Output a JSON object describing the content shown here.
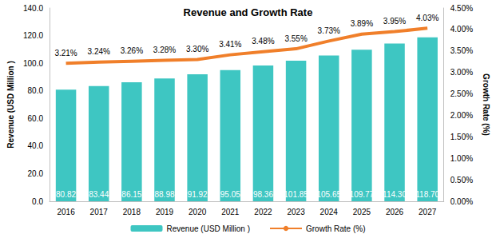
{
  "chart_data": {
    "type": "bar",
    "title": "Revenue and Growth Rate",
    "categories": [
      "2016",
      "2017",
      "2018",
      "2019",
      "2020",
      "2021",
      "2022",
      "2023",
      "2024",
      "2025",
      "2026",
      "2027"
    ],
    "y_label": "Revenue (USD Million )",
    "y2_label": "Growth Rate (%)",
    "ylim": [
      0,
      140
    ],
    "yticks": [
      {
        "value": 0,
        "label": "0.0"
      },
      {
        "value": 20,
        "label": "20.0"
      },
      {
        "value": 40,
        "label": "40.0"
      },
      {
        "value": 60,
        "label": "60.0"
      },
      {
        "value": 80,
        "label": "80.0"
      },
      {
        "value": 100,
        "label": "100.0"
      },
      {
        "value": 120,
        "label": "120.0"
      },
      {
        "value": 140,
        "label": "140.0"
      }
    ],
    "y2lim": [
      0,
      4.5
    ],
    "y2ticks": [
      {
        "value": 0,
        "label": "0.00%"
      },
      {
        "value": 0.5,
        "label": "0.50%"
      },
      {
        "value": 1,
        "label": "1.00%"
      },
      {
        "value": 1.5,
        "label": "1.50%"
      },
      {
        "value": 2,
        "label": "2.00%"
      },
      {
        "value": 2.5,
        "label": "2.50%"
      },
      {
        "value": 3,
        "label": "3.00%"
      },
      {
        "value": 3.5,
        "label": "3.50%"
      },
      {
        "value": 4,
        "label": "4.00%"
      },
      {
        "value": 4.5,
        "label": "4.50%"
      }
    ],
    "grid": false,
    "legend": "bottom",
    "data_labels": true,
    "series": [
      {
        "name": "Revenue (USD Million )",
        "type": "bar",
        "color": "#3ec6c2",
        "values": [
          80.82,
          83.44,
          86.15,
          88.98,
          91.92,
          95.05,
          98.36,
          101.85,
          105.65,
          109.77,
          114.3,
          118.7
        ],
        "value_labels": [
          "80.82",
          "83.44",
          "86.15",
          "88.98",
          "91.92",
          "95.05",
          "98.36",
          "101.85",
          "105.65",
          "109.77",
          "114.30",
          "118.70"
        ]
      },
      {
        "name": "Growth Rate (%)",
        "type": "line",
        "axis": "y2",
        "color": "#f07f2a",
        "values": [
          3.21,
          3.24,
          3.26,
          3.28,
          3.3,
          3.41,
          3.48,
          3.55,
          3.73,
          3.89,
          3.95,
          4.03
        ],
        "value_labels": [
          "3.21%",
          "3.24%",
          "3.26%",
          "3.28%",
          "3.30%",
          "3.41%",
          "3.48%",
          "3.55%",
          "3.73%",
          "3.89%",
          "3.95%",
          "4.03%"
        ]
      }
    ]
  }
}
